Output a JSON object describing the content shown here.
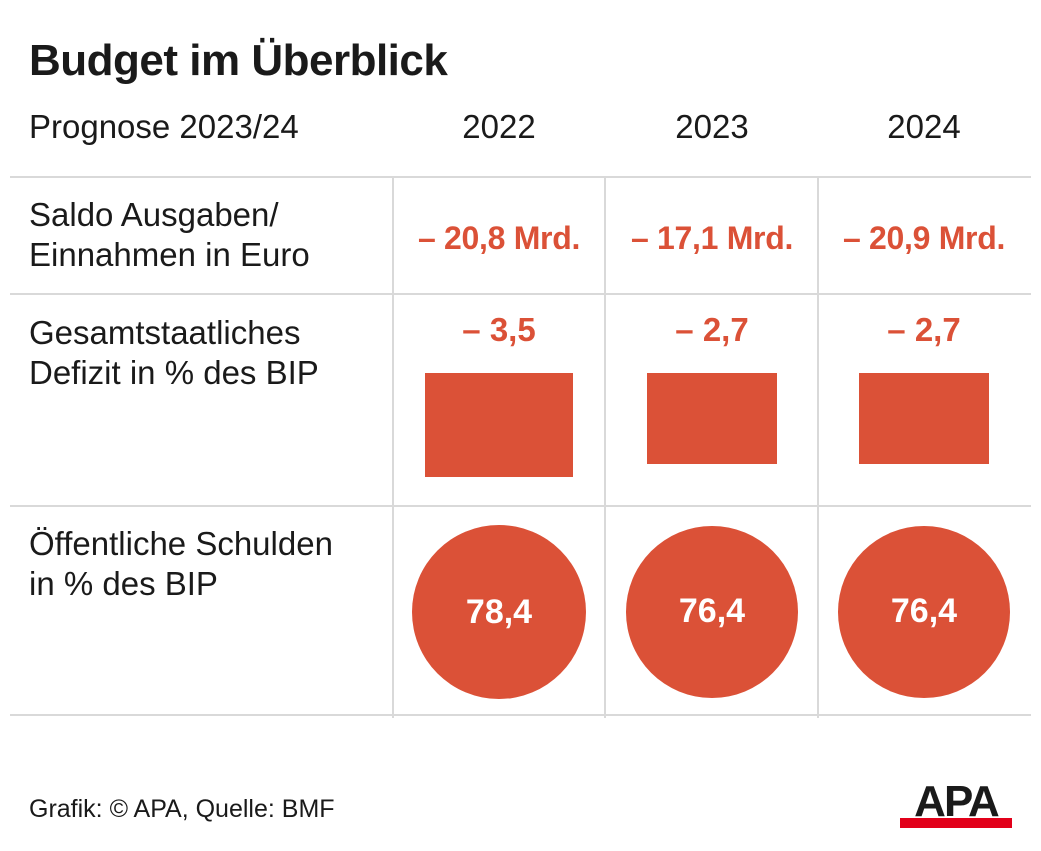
{
  "title": "Budget im Überblick",
  "subtitle": "Prognose 2023/24",
  "source": "Grafik: © APA, Quelle: BMF",
  "logo_text": "APA",
  "colors": {
    "accent": "#db5137",
    "text": "#1a1a1a",
    "grid": "#d9d9d9",
    "logo_bar": "#e2001a"
  },
  "chart_data": {
    "type": "table",
    "columns": [
      "2022",
      "2023",
      "2024"
    ],
    "rows": [
      {
        "label_lines": [
          "Saldo Ausgaben/",
          "Einnahmen in Euro"
        ],
        "display": [
          "– 20,8 Mrd.",
          "– 17,1 Mrd.",
          "– 20,9 Mrd."
        ],
        "values": [
          -20.8,
          -17.1,
          -20.9
        ],
        "unit": "Mrd. Euro"
      },
      {
        "label_lines": [
          "Gesamtstaatliches",
          "Defizit in % des BIP"
        ],
        "display": [
          "– 3,5",
          "– 2,7",
          "– 2,7"
        ],
        "values": [
          -3.5,
          -2.7,
          -2.7
        ],
        "unit": "% des BIP",
        "mark": "bar"
      },
      {
        "label_lines": [
          "Öffentliche Schulden",
          "in % des BIP"
        ],
        "display": [
          "78,4",
          "76,4",
          "76,4"
        ],
        "values": [
          78.4,
          76.4,
          76.4
        ],
        "unit": "% des BIP",
        "mark": "circle"
      }
    ]
  }
}
